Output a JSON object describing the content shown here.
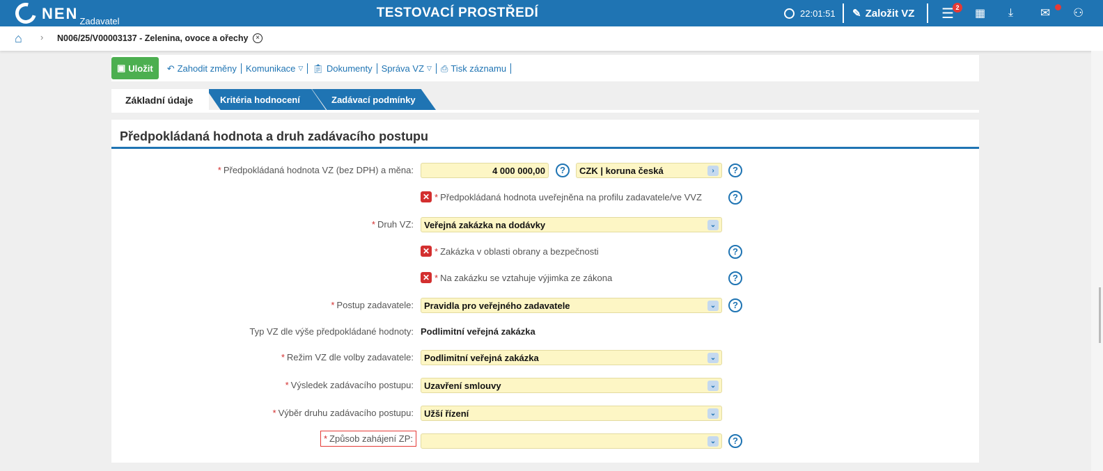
{
  "header": {
    "logo": "NEN",
    "logo_sub": "Zadavatel",
    "env_title": "TESTOVACÍ PROSTŘEDÍ",
    "time": "22:01:51",
    "create_label": "Založit VZ",
    "menu_badge": "2",
    "brand_color": "#1f74b3"
  },
  "breadcrumb": {
    "item": "N006/25/V00003137 - Zelenina, ovoce a ořechy"
  },
  "toolbar": {
    "save": "Uložit",
    "discard": "Zahodit změny",
    "communication": "Komunikace",
    "documents": "Dokumenty",
    "management": "Správa VZ",
    "print": "Tisk záznamu"
  },
  "tabs": [
    {
      "label": "Základní údaje",
      "active": true
    },
    {
      "label": "Kritéria hodnocení"
    },
    {
      "label": "Zadávací podmínky"
    }
  ],
  "section": {
    "title": "Předpokládaná hodnota a druh zadávacího postupu",
    "estimated_value": {
      "label": "Předpokládaná hodnota VZ (bez DPH) a měna:",
      "value": "4 000 000,00",
      "currency": "CZK | koruna česká"
    },
    "published_check": {
      "label": "Předpokládaná hodnota uveřejněna na profilu zadavatele/ve VVZ",
      "checked": false
    },
    "type": {
      "label": "Druh VZ:",
      "value": "Veřejná zakázka na dodávky"
    },
    "defense_check": {
      "label": "Zakázka v oblasti obrany a bezpečnosti",
      "checked": false
    },
    "exception_check": {
      "label": "Na zakázku se vztahuje výjimka ze zákona",
      "checked": false
    },
    "procedure": {
      "label": "Postup zadavatele:",
      "value": "Pravidla pro veřejného zadavatele"
    },
    "type_by_value": {
      "label": "Typ VZ dle výše předpokládané hodnoty:",
      "value": "Podlimitní veřejná zakázka"
    },
    "regime": {
      "label": "Režim VZ dle volby zadavatele:",
      "value": "Podlimitní veřejná zakázka"
    },
    "result": {
      "label": "Výsledek zadávacího postupu:",
      "value": "Uzavření smlouvy"
    },
    "procedure_kind": {
      "label": "Výběr druhu zadávacího postupu:",
      "value": "Užší řízení"
    },
    "start_method": {
      "label": "Způsob zahájení ZP:",
      "value": ""
    }
  }
}
